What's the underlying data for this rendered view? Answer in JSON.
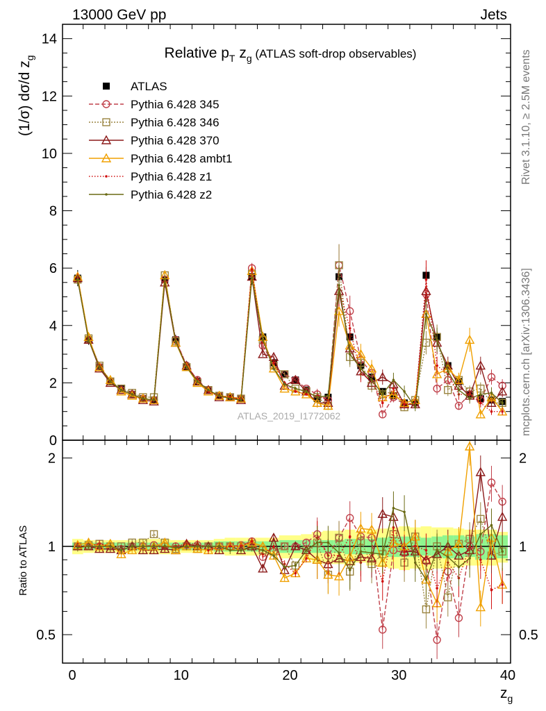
{
  "header": {
    "left": "13000 GeV pp",
    "right": "Jets"
  },
  "side": {
    "top": "Rivet 3.1.10, ≥ 2.5M events",
    "bottom": "mcplots.cern.ch [arXiv:1306.3436]"
  },
  "watermark": "ATLAS_2019_I1772062",
  "colors": {
    "ATLAS": "#000000",
    "p345": "#c0404a",
    "p346": "#9a8440",
    "p370": "#8b1a1a",
    "ambt1": "#f0a000",
    "z1": "#d01010",
    "z2": "#6a6a14",
    "band_inner": "#8ff58f",
    "band_outer": "#ffff88"
  },
  "chart_data": [
    {
      "type": "line",
      "title_main": "Relative p",
      "title_sub": "T",
      "title_main2": " z",
      "title_sub2": "g",
      "title_rest": " (ATLAS soft-drop observables)",
      "ylabel": "(1/σ) dσ/d z",
      "ylabel_sub": "g",
      "xlim": [
        -1,
        40
      ],
      "ylim": [
        0,
        14.5
      ],
      "yticks": [
        0,
        2,
        4,
        6,
        8,
        10,
        12,
        14
      ],
      "ytick_labels": [
        "0",
        "2",
        "4",
        "6",
        "8",
        "10",
        "12",
        "14"
      ],
      "legend_position": "top-left",
      "x": [
        0.5,
        1.5,
        2.5,
        3.5,
        4.5,
        5.5,
        6.5,
        7.5,
        8.5,
        9.5,
        10.5,
        11.5,
        12.5,
        13.5,
        14.5,
        15.5,
        16.5,
        17.5,
        18.5,
        19.5,
        20.5,
        21.5,
        22.5,
        23.5,
        24.5,
        25.5,
        26.5,
        27.5,
        28.5,
        29.5,
        30.5,
        31.5,
        32.5,
        33.5,
        34.5,
        35.5,
        36.5,
        37.5,
        38.5,
        39.5
      ],
      "series": [
        {
          "name": "ATLAS",
          "key": "ATLAS",
          "values": [
            5.65,
            3.5,
            2.55,
            2.05,
            1.8,
            1.6,
            1.45,
            1.4,
            5.6,
            3.5,
            2.55,
            2.05,
            1.75,
            1.55,
            1.5,
            1.45,
            5.7,
            3.6,
            2.7,
            2.3,
            2.1,
            1.75,
            1.45,
            1.5,
            5.7,
            3.6,
            2.6,
            2.2,
            1.7,
            1.55,
            1.3,
            1.3,
            5.75,
            3.6,
            2.6,
            2.05,
            1.6,
            1.45,
            1.4,
            1.35
          ]
        },
        {
          "name": "Pythia 6.428 345",
          "key": "p345",
          "values": [
            5.6,
            3.5,
            2.55,
            2.05,
            1.75,
            1.6,
            1.45,
            1.4,
            5.6,
            3.5,
            2.6,
            2.1,
            1.75,
            1.55,
            1.5,
            1.45,
            6.0,
            3.3,
            2.6,
            2.3,
            2.1,
            1.8,
            1.6,
            1.4,
            6.1,
            4.5,
            2.8,
            2.35,
            0.9,
            1.5,
            1.25,
            1.3,
            5.1,
            1.8,
            2.1,
            1.2,
            1.6,
            1.4,
            2.2,
            1.9
          ]
        },
        {
          "name": "Pythia 6.428 346",
          "key": "p346",
          "values": [
            5.6,
            3.55,
            2.6,
            2.05,
            1.8,
            1.65,
            1.5,
            1.5,
            5.75,
            3.45,
            2.55,
            2.0,
            1.75,
            1.55,
            1.5,
            1.45,
            5.8,
            3.5,
            2.6,
            2.3,
            1.8,
            1.7,
            1.5,
            1.2,
            6.1,
            2.9,
            2.7,
            1.9,
            1.6,
            1.7,
            1.15,
            1.4,
            3.4,
            3.6,
            1.75,
            2.1,
            1.7,
            1.8,
            1.3,
            1.3
          ]
        },
        {
          "name": "Pythia 6.428 370",
          "key": "p370",
          "values": [
            5.65,
            3.5,
            2.5,
            2.0,
            1.75,
            1.6,
            1.4,
            1.35,
            5.5,
            3.4,
            2.6,
            2.05,
            1.75,
            1.5,
            1.5,
            1.4,
            5.7,
            3.0,
            2.9,
            1.9,
            2.1,
            1.7,
            1.3,
            1.3,
            5.2,
            3.2,
            2.4,
            2.0,
            2.2,
            1.95,
            1.25,
            1.25,
            5.2,
            3.4,
            2.6,
            1.9,
            1.55,
            2.6,
            1.3,
            1.7
          ]
        },
        {
          "name": "Pythia 6.428 ambt1",
          "key": "ambt1",
          "values": [
            5.7,
            3.6,
            2.55,
            2.1,
            1.7,
            1.55,
            1.45,
            1.4,
            5.75,
            3.4,
            2.55,
            2.0,
            1.7,
            1.55,
            1.5,
            1.45,
            5.9,
            3.6,
            2.5,
            1.8,
            1.7,
            1.6,
            1.3,
            1.2,
            4.5,
            3.3,
            3.0,
            2.5,
            1.5,
            1.6,
            1.3,
            1.4,
            4.4,
            2.3,
            2.5,
            2.1,
            3.5,
            0.9,
            1.5,
            1.0
          ]
        },
        {
          "name": "Pythia 6.428 z1",
          "key": "z1",
          "values": [
            5.65,
            3.5,
            2.6,
            2.05,
            1.75,
            1.6,
            1.45,
            1.4,
            5.55,
            3.5,
            2.6,
            2.1,
            1.7,
            1.55,
            1.5,
            1.45,
            5.95,
            3.4,
            2.7,
            2.0,
            1.7,
            1.6,
            1.55,
            1.4,
            5.3,
            3.9,
            2.3,
            2.1,
            1.3,
            1.8,
            1.25,
            1.3,
            5.6,
            2.6,
            2.3,
            1.6,
            1.6,
            1.3,
            1.0,
            1.0
          ]
        },
        {
          "name": "Pythia 6.428 z2",
          "key": "z2",
          "values": [
            5.6,
            3.5,
            2.55,
            2.05,
            1.75,
            1.6,
            1.45,
            1.4,
            5.6,
            3.45,
            2.55,
            2.05,
            1.75,
            1.55,
            1.45,
            1.4,
            5.65,
            3.5,
            2.5,
            1.95,
            1.8,
            1.7,
            1.5,
            1.55,
            5.4,
            3.0,
            2.5,
            2.1,
            1.6,
            2.1,
            1.7,
            1.15,
            4.4,
            3.5,
            2.4,
            1.75,
            1.45,
            1.6,
            1.65,
            1.3
          ]
        }
      ]
    },
    {
      "type": "line",
      "ylabel": "Ratio to ATLAS",
      "xlabel": "z",
      "xlabel_sub": "g",
      "xlim": [
        -1,
        40
      ],
      "ylim": [
        0.4,
        2.3
      ],
      "log_scale_y": true,
      "yticks": [
        0.5,
        1,
        2
      ],
      "ytick_labels": [
        "0.5",
        "1",
        "2"
      ],
      "xticks": [
        0,
        10,
        20,
        30,
        40
      ],
      "xtick_labels": [
        "0",
        "10",
        "20",
        "30",
        "40"
      ],
      "reference_line": 1,
      "x": [
        0.5,
        1.5,
        2.5,
        3.5,
        4.5,
        5.5,
        6.5,
        7.5,
        8.5,
        9.5,
        10.5,
        11.5,
        12.5,
        13.5,
        14.5,
        15.5,
        16.5,
        17.5,
        18.5,
        19.5,
        20.5,
        21.5,
        22.5,
        23.5,
        24.5,
        25.5,
        26.5,
        27.5,
        28.5,
        29.5,
        30.5,
        31.5,
        32.5,
        33.5,
        34.5,
        35.5,
        36.5,
        37.5,
        38.5,
        39.5
      ],
      "band_inner_halfwidth": [
        0.03,
        0.03,
        0.03,
        0.03,
        0.03,
        0.03,
        0.03,
        0.03,
        0.03,
        0.03,
        0.03,
        0.03,
        0.03,
        0.04,
        0.04,
        0.04,
        0.04,
        0.04,
        0.04,
        0.05,
        0.05,
        0.05,
        0.05,
        0.05,
        0.05,
        0.06,
        0.06,
        0.06,
        0.07,
        0.08,
        0.08,
        0.08,
        0.07,
        0.08,
        0.09,
        0.09,
        0.08,
        0.1,
        0.1,
        0.09
      ],
      "band_outer_halfwidth": [
        0.06,
        0.05,
        0.05,
        0.05,
        0.05,
        0.05,
        0.06,
        0.06,
        0.06,
        0.05,
        0.05,
        0.05,
        0.05,
        0.06,
        0.07,
        0.07,
        0.07,
        0.07,
        0.07,
        0.09,
        0.09,
        0.1,
        0.12,
        0.13,
        0.13,
        0.14,
        0.12,
        0.14,
        0.15,
        0.16,
        0.17,
        0.16,
        0.17,
        0.16,
        0.16,
        0.15,
        0.14,
        0.14,
        0.14,
        0.12
      ],
      "series": [
        {
          "name": "Pythia 6.428 345",
          "key": "p345",
          "values": [
            1.0,
            1.0,
            1.0,
            1.0,
            0.98,
            1.0,
            1.0,
            1.01,
            1.0,
            1.0,
            1.01,
            1.01,
            1.0,
            1.0,
            1.0,
            1.01,
            1.04,
            0.92,
            0.96,
            1.0,
            1.0,
            1.03,
            1.1,
            0.93,
            1.07,
            1.25,
            1.08,
            1.07,
            0.52,
            0.97,
            0.95,
            0.98,
            0.89,
            0.48,
            0.82,
            0.57,
            1.0,
            0.96,
            1.65,
            1.42
          ]
        },
        {
          "name": "Pythia 6.428 346",
          "key": "p346",
          "values": [
            1.0,
            1.01,
            1.02,
            1.0,
            1.0,
            1.03,
            1.03,
            1.1,
            1.03,
            0.98,
            1.0,
            0.98,
            1.0,
            1.0,
            1.0,
            1.0,
            1.02,
            0.97,
            0.96,
            1.0,
            0.86,
            0.97,
            1.03,
            0.8,
            1.07,
            0.82,
            1.04,
            0.87,
            0.94,
            1.1,
            0.88,
            1.08,
            0.61,
            1.0,
            0.67,
            1.02,
            1.06,
            1.24,
            0.93,
            0.96
          ]
        },
        {
          "name": "Pythia 6.428 370",
          "key": "p370",
          "values": [
            1.0,
            1.0,
            0.98,
            0.98,
            0.97,
            1.0,
            0.97,
            0.97,
            0.98,
            0.97,
            1.02,
            1.0,
            1.0,
            0.97,
            1.0,
            0.97,
            1.0,
            0.84,
            1.07,
            0.83,
            1.0,
            0.97,
            0.9,
            0.87,
            0.91,
            0.89,
            0.92,
            0.91,
            1.29,
            1.26,
            0.96,
            0.96,
            0.9,
            0.94,
            1.0,
            0.93,
            0.97,
            1.79,
            0.93,
            1.26
          ]
        },
        {
          "name": "Pythia 6.428 ambt1",
          "key": "ambt1",
          "values": [
            1.01,
            1.03,
            1.0,
            1.02,
            0.94,
            0.97,
            1.0,
            1.0,
            1.03,
            0.97,
            1.0,
            0.98,
            0.97,
            1.0,
            1.0,
            1.0,
            1.03,
            1.0,
            0.93,
            0.78,
            0.81,
            0.91,
            0.9,
            0.8,
            0.79,
            0.92,
            1.15,
            1.14,
            0.88,
            1.03,
            1.0,
            1.08,
            0.77,
            0.64,
            0.96,
            1.02,
            2.19,
            0.62,
            1.07,
            0.74
          ]
        },
        {
          "name": "Pythia 6.428 z1",
          "key": "z1",
          "values": [
            1.0,
            1.0,
            1.02,
            1.0,
            0.97,
            1.0,
            1.0,
            1.0,
            0.99,
            1.0,
            1.02,
            1.02,
            0.97,
            1.0,
            1.0,
            1.0,
            1.04,
            0.94,
            1.0,
            0.87,
            0.81,
            0.91,
            1.07,
            0.93,
            0.93,
            1.08,
            0.88,
            0.95,
            0.76,
            1.16,
            0.96,
            1.0,
            0.97,
            0.72,
            0.88,
            0.78,
            1.0,
            0.9,
            0.71,
            0.74
          ]
        },
        {
          "name": "Pythia 6.428 z2",
          "key": "z2",
          "values": [
            0.99,
            1.0,
            1.0,
            1.0,
            0.97,
            1.0,
            1.0,
            1.0,
            1.0,
            0.99,
            1.0,
            1.0,
            1.0,
            1.0,
            0.97,
            0.97,
            0.99,
            0.97,
            0.93,
            0.85,
            0.86,
            0.97,
            1.03,
            1.03,
            0.95,
            0.83,
            0.96,
            0.95,
            0.94,
            1.35,
            1.31,
            0.88,
            0.77,
            0.97,
            0.92,
            0.85,
            0.91,
            1.1,
            1.18,
            0.96
          ]
        }
      ]
    }
  ]
}
